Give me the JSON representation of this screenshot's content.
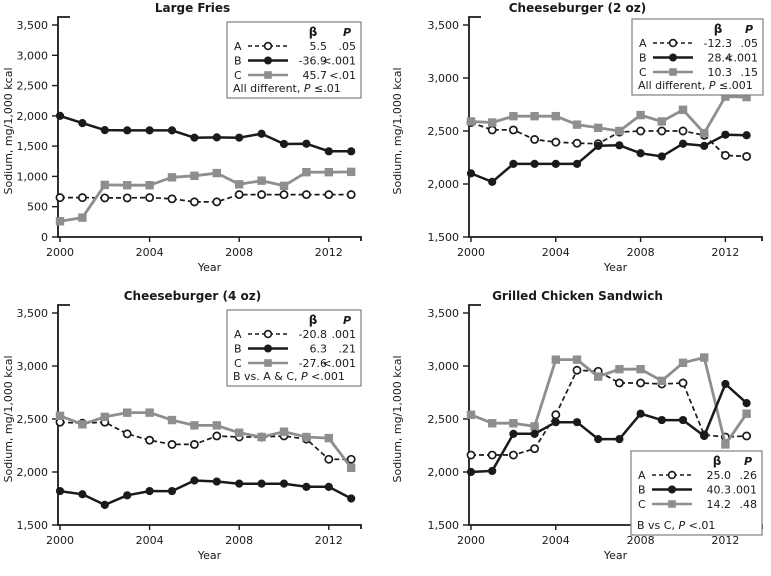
{
  "figure": {
    "ylabel": "Sodium, mg/1,000 kcal",
    "xlabel": "Year",
    "legend_headers": {
      "beta": "β",
      "p": "P"
    },
    "colors": {
      "black": "#1a1a1a",
      "gray": "#8e8e8e",
      "legend_border": "#7f7f7f",
      "background": "#ffffff",
      "marker_open_fill": "#ffffff"
    }
  },
  "chart_data": [
    {
      "type": "line",
      "title": "Large Fries",
      "slug": "large-fries",
      "xlabel": "Year",
      "ylabel": "Sodium, mg/1,000 kcal",
      "xlim": [
        2000,
        2013
      ],
      "ylim": [
        0,
        3500
      ],
      "xticks": [
        2000,
        2004,
        2008,
        2012
      ],
      "xtick_labels": [
        "2000",
        "2004",
        "2008",
        "2012"
      ],
      "yticks": [
        0,
        500,
        1000,
        1500,
        2000,
        2500,
        3000,
        3500
      ],
      "ytick_labels": [
        "0",
        "500",
        "1,000",
        "1,500",
        "2,000",
        "2,500",
        "3,000",
        "3,500"
      ],
      "grid": false,
      "x": [
        2000,
        2001,
        2002,
        2003,
        2004,
        2005,
        2006,
        2007,
        2008,
        2009,
        2010,
        2011,
        2012,
        2013
      ],
      "series": [
        {
          "name": "A",
          "style": "dashed-open-circle",
          "beta": "5.5",
          "p": ".05",
          "values": [
            650,
            650,
            645,
            645,
            650,
            630,
            580,
            580,
            700,
            700,
            700,
            700,
            700,
            700
          ]
        },
        {
          "name": "B",
          "style": "solid-filled-circle",
          "beta": "-36.9",
          "p": "<.001",
          "values": [
            2000,
            1880,
            1765,
            1760,
            1760,
            1760,
            1640,
            1645,
            1640,
            1705,
            1535,
            1540,
            1415,
            1415
          ]
        },
        {
          "name": "C",
          "style": "solid-gray-square",
          "beta": "45.7",
          "p": "<.01",
          "values": [
            260,
            320,
            860,
            855,
            855,
            985,
            1010,
            1055,
            870,
            930,
            845,
            1070,
            1070,
            1075
          ]
        }
      ],
      "note": "All different, P ≤.01",
      "legend_pos": "top-right"
    },
    {
      "type": "line",
      "title": "Cheeseburger (2 oz)",
      "slug": "cheeseburger-2oz",
      "xlabel": "Year",
      "ylabel": "Sodium, mg/1,000 kcal",
      "xlim": [
        2000,
        2013
      ],
      "ylim": [
        1500,
        3500
      ],
      "xticks": [
        2000,
        2004,
        2008,
        2012
      ],
      "xtick_labels": [
        "2000",
        "2004",
        "2008",
        "2012"
      ],
      "yticks": [
        1500,
        2000,
        2500,
        3000,
        3500
      ],
      "ytick_labels": [
        "1,500",
        "2,000",
        "2,500",
        "3,000",
        "3,500"
      ],
      "grid": false,
      "x": [
        2000,
        2001,
        2002,
        2003,
        2004,
        2005,
        2006,
        2007,
        2008,
        2009,
        2010,
        2011,
        2012,
        2013
      ],
      "series": [
        {
          "name": "A",
          "style": "dashed-open-circle",
          "beta": "-12.3",
          "p": ".05",
          "values": [
            2580,
            2510,
            2510,
            2420,
            2395,
            2385,
            2380,
            2490,
            2500,
            2500,
            2500,
            2460,
            2270,
            2260
          ]
        },
        {
          "name": "B",
          "style": "solid-filled-circle",
          "beta": "28.4",
          "p": "<.001",
          "values": [
            2100,
            2020,
            2190,
            2190,
            2190,
            2190,
            2360,
            2365,
            2290,
            2260,
            2380,
            2360,
            2465,
            2460
          ]
        },
        {
          "name": "C",
          "style": "solid-gray-square",
          "beta": "10.3",
          "p": ".15",
          "values": [
            2590,
            2580,
            2640,
            2640,
            2640,
            2560,
            2530,
            2500,
            2650,
            2590,
            2700,
            2480,
            2825,
            2820
          ]
        }
      ],
      "note": "All different, P ≤.001",
      "legend_pos": "top-right"
    },
    {
      "type": "line",
      "title": "Cheeseburger (4 oz)",
      "slug": "cheeseburger-4oz",
      "xlabel": "Year",
      "ylabel": "Sodium, mg/1,000 kcal",
      "xlim": [
        2000,
        2013
      ],
      "ylim": [
        1500,
        3500
      ],
      "xticks": [
        2000,
        2004,
        2008,
        2012
      ],
      "xtick_labels": [
        "2000",
        "2004",
        "2008",
        "2012"
      ],
      "yticks": [
        1500,
        2000,
        2500,
        3000,
        3500
      ],
      "ytick_labels": [
        "1,500",
        "2,000",
        "2,500",
        "3,000",
        "3,500"
      ],
      "grid": false,
      "x": [
        2000,
        2001,
        2002,
        2003,
        2004,
        2005,
        2006,
        2007,
        2008,
        2009,
        2010,
        2011,
        2012,
        2013
      ],
      "series": [
        {
          "name": "A",
          "style": "dashed-open-circle",
          "beta": "-20.8",
          "p": ".001",
          "values": [
            2470,
            2460,
            2470,
            2360,
            2300,
            2260,
            2260,
            2340,
            2330,
            2330,
            2340,
            2310,
            2120,
            2120
          ]
        },
        {
          "name": "B",
          "style": "solid-filled-circle",
          "beta": "6.3",
          "p": ".21",
          "values": [
            1820,
            1790,
            1690,
            1780,
            1820,
            1820,
            1920,
            1910,
            1890,
            1890,
            1890,
            1860,
            1860,
            1750
          ]
        },
        {
          "name": "C",
          "style": "solid-gray-square",
          "beta": "-27.6",
          "p": "<.001",
          "values": [
            2530,
            2450,
            2520,
            2560,
            2560,
            2490,
            2440,
            2440,
            2370,
            2330,
            2380,
            2330,
            2320,
            2040
          ]
        }
      ],
      "note": "B vs. A & C, P <.001",
      "legend_pos": "top-right"
    },
    {
      "type": "line",
      "title": "Grilled Chicken Sandwich",
      "slug": "grilled-chicken-sandwich",
      "xlabel": "Year",
      "ylabel": "Sodium, mg/1,000 kcal",
      "xlim": [
        2000,
        2013
      ],
      "ylim": [
        1500,
        3500
      ],
      "xticks": [
        2000,
        2004,
        2008,
        2012
      ],
      "xtick_labels": [
        "2000",
        "2004",
        "2008",
        "2012"
      ],
      "yticks": [
        1500,
        2000,
        2500,
        3000,
        3500
      ],
      "ytick_labels": [
        "1,500",
        "2,000",
        "2,500",
        "3,000",
        "3,500"
      ],
      "grid": false,
      "x": [
        2000,
        2001,
        2002,
        2003,
        2004,
        2005,
        2006,
        2007,
        2008,
        2009,
        2010,
        2011,
        2012,
        2013
      ],
      "series": [
        {
          "name": "A",
          "style": "dashed-open-circle",
          "beta": "25.0",
          "p": ".26",
          "values": [
            2160,
            2160,
            2160,
            2220,
            2540,
            2960,
            2950,
            2840,
            2840,
            2830,
            2840,
            2350,
            2330,
            2340
          ]
        },
        {
          "name": "B",
          "style": "solid-filled-circle",
          "beta": "40.3",
          "p": ".001",
          "values": [
            2000,
            2010,
            2360,
            2360,
            2470,
            2470,
            2310,
            2310,
            2550,
            2490,
            2490,
            2340,
            2830,
            2650
          ]
        },
        {
          "name": "C",
          "style": "solid-gray-square",
          "beta": "14.2",
          "p": ".48",
          "values": [
            2540,
            2460,
            2460,
            2430,
            3060,
            3060,
            2900,
            2970,
            2970,
            2860,
            3030,
            3080,
            2260,
            2550
          ]
        }
      ],
      "note": "B vs C, P <.01",
      "legend_pos": "bottom-right"
    }
  ]
}
